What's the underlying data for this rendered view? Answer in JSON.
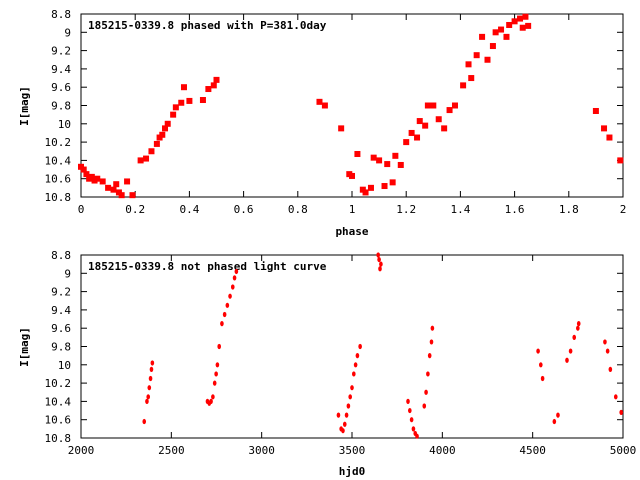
{
  "chart_data": [
    {
      "type": "scatter",
      "title": "185215-0339.8 phased with P=381.0day",
      "xlabel": "phase",
      "ylabel": "I[mag]",
      "xlim": [
        0,
        2
      ],
      "ylim": [
        10.8,
        8.8
      ],
      "y_inverted": true,
      "grid": false,
      "xticks": [
        "0",
        "0.2",
        "0.4",
        "0.6",
        "0.8",
        "1",
        "1.2",
        "1.4",
        "1.6",
        "1.8",
        "2"
      ],
      "xtick_values": [
        0,
        0.2,
        0.4,
        0.6,
        0.8,
        1,
        1.2,
        1.4,
        1.6,
        1.8,
        2
      ],
      "yticks": [
        "8.8",
        "9",
        "9.2",
        "9.4",
        "9.6",
        "9.8",
        "10",
        "10.2",
        "10.4",
        "10.6",
        "10.8"
      ],
      "ytick_values": [
        8.8,
        9.0,
        9.2,
        9.4,
        9.6,
        9.8,
        10.0,
        10.2,
        10.4,
        10.6,
        10.8
      ],
      "marker_color": "#ff0000",
      "series": [
        {
          "points": [
            [
              0.0,
              10.47
            ],
            [
              0.01,
              10.5
            ],
            [
              0.02,
              10.55
            ],
            [
              0.03,
              10.6
            ],
            [
              0.04,
              10.58
            ],
            [
              0.05,
              10.62
            ],
            [
              0.06,
              10.6
            ],
            [
              0.08,
              10.63
            ],
            [
              0.1,
              10.7
            ],
            [
              0.12,
              10.72
            ],
            [
              0.13,
              10.66
            ],
            [
              0.14,
              10.75
            ],
            [
              0.15,
              10.78
            ],
            [
              0.17,
              10.63
            ],
            [
              0.19,
              10.78
            ],
            [
              0.22,
              10.4
            ],
            [
              0.24,
              10.38
            ],
            [
              0.26,
              10.3
            ],
            [
              0.28,
              10.22
            ],
            [
              0.29,
              10.15
            ],
            [
              0.3,
              10.12
            ],
            [
              0.31,
              10.05
            ],
            [
              0.32,
              10.0
            ],
            [
              0.34,
              9.9
            ],
            [
              0.35,
              9.82
            ],
            [
              0.37,
              9.77
            ],
            [
              0.38,
              9.6
            ],
            [
              0.4,
              9.75
            ],
            [
              0.45,
              9.74
            ],
            [
              0.47,
              9.62
            ],
            [
              0.49,
              9.58
            ],
            [
              0.5,
              9.52
            ],
            [
              0.88,
              9.76
            ],
            [
              0.9,
              9.8
            ],
            [
              0.96,
              10.05
            ],
            [
              0.99,
              10.55
            ],
            [
              1.0,
              10.57
            ],
            [
              1.02,
              10.33
            ],
            [
              1.04,
              10.72
            ],
            [
              1.05,
              10.75
            ],
            [
              1.07,
              10.7
            ],
            [
              1.08,
              10.37
            ],
            [
              1.1,
              10.4
            ],
            [
              1.12,
              10.68
            ],
            [
              1.13,
              10.44
            ],
            [
              1.15,
              10.64
            ],
            [
              1.16,
              10.35
            ],
            [
              1.18,
              10.45
            ],
            [
              1.2,
              10.2
            ],
            [
              1.22,
              10.1
            ],
            [
              1.24,
              10.15
            ],
            [
              1.25,
              9.97
            ],
            [
              1.27,
              10.02
            ],
            [
              1.28,
              9.8
            ],
            [
              1.3,
              9.8
            ],
            [
              1.32,
              9.95
            ],
            [
              1.34,
              10.05
            ],
            [
              1.36,
              9.85
            ],
            [
              1.38,
              9.8
            ],
            [
              1.41,
              9.58
            ],
            [
              1.43,
              9.35
            ],
            [
              1.44,
              9.5
            ],
            [
              1.46,
              9.25
            ],
            [
              1.48,
              9.05
            ],
            [
              1.5,
              9.3
            ],
            [
              1.52,
              9.15
            ],
            [
              1.53,
              9.0
            ],
            [
              1.55,
              8.97
            ],
            [
              1.57,
              9.05
            ],
            [
              1.58,
              8.92
            ],
            [
              1.6,
              8.88
            ],
            [
              1.62,
              8.85
            ],
            [
              1.63,
              8.95
            ],
            [
              1.64,
              8.83
            ],
            [
              1.65,
              8.93
            ],
            [
              1.9,
              9.86
            ],
            [
              1.93,
              10.05
            ],
            [
              1.95,
              10.15
            ],
            [
              1.99,
              10.4
            ]
          ]
        }
      ]
    },
    {
      "type": "scatter",
      "title": "185215-0339.8 not phased light curve",
      "xlabel": "hjd0",
      "ylabel": "I[mag]",
      "xlim": [
        2000,
        5000
      ],
      "ylim": [
        10.8,
        8.8
      ],
      "y_inverted": true,
      "grid": false,
      "xticks": [
        "2000",
        "2500",
        "3000",
        "3500",
        "4000",
        "4500",
        "5000"
      ],
      "xtick_values": [
        2000,
        2500,
        3000,
        3500,
        4000,
        4500,
        5000
      ],
      "yticks": [
        "8.8",
        "9",
        "9.2",
        "9.4",
        "9.6",
        "9.8",
        "10",
        "10.2",
        "10.4",
        "10.6",
        "10.8"
      ],
      "ytick_values": [
        8.8,
        9.0,
        9.2,
        9.4,
        9.6,
        9.8,
        10.0,
        10.2,
        10.4,
        10.6,
        10.8
      ],
      "marker_color": "#ff0000",
      "series": [
        {
          "points": [
            [
              2350,
              10.62
            ],
            [
              2365,
              10.4
            ],
            [
              2372,
              10.35
            ],
            [
              2378,
              10.25
            ],
            [
              2385,
              10.15
            ],
            [
              2390,
              10.05
            ],
            [
              2395,
              9.98
            ],
            [
              2700,
              10.4
            ],
            [
              2710,
              10.42
            ],
            [
              2720,
              10.4
            ],
            [
              2730,
              10.35
            ],
            [
              2740,
              10.2
            ],
            [
              2748,
              10.1
            ],
            [
              2755,
              10.0
            ],
            [
              2765,
              9.8
            ],
            [
              2780,
              9.55
            ],
            [
              2795,
              9.45
            ],
            [
              2810,
              9.35
            ],
            [
              2825,
              9.25
            ],
            [
              2840,
              9.15
            ],
            [
              2850,
              9.05
            ],
            [
              2860,
              8.98
            ],
            [
              3425,
              10.55
            ],
            [
              3440,
              10.7
            ],
            [
              3450,
              10.72
            ],
            [
              3460,
              10.65
            ],
            [
              3470,
              10.55
            ],
            [
              3480,
              10.45
            ],
            [
              3490,
              10.35
            ],
            [
              3500,
              10.25
            ],
            [
              3510,
              10.1
            ],
            [
              3520,
              10.0
            ],
            [
              3530,
              9.9
            ],
            [
              3545,
              9.8
            ],
            [
              3645,
              8.8
            ],
            [
              3650,
              8.85
            ],
            [
              3655,
              8.95
            ],
            [
              3660,
              8.9
            ],
            [
              3810,
              10.4
            ],
            [
              3820,
              10.5
            ],
            [
              3830,
              10.6
            ],
            [
              3840,
              10.7
            ],
            [
              3850,
              10.75
            ],
            [
              3860,
              10.78
            ],
            [
              3900,
              10.45
            ],
            [
              3910,
              10.3
            ],
            [
              3920,
              10.1
            ],
            [
              3930,
              9.9
            ],
            [
              3940,
              9.75
            ],
            [
              3945,
              9.6
            ],
            [
              4530,
              9.85
            ],
            [
              4545,
              10.0
            ],
            [
              4555,
              10.15
            ],
            [
              4620,
              10.62
            ],
            [
              4640,
              10.55
            ],
            [
              4690,
              9.95
            ],
            [
              4710,
              9.85
            ],
            [
              4730,
              9.7
            ],
            [
              4750,
              9.6
            ],
            [
              4755,
              9.55
            ],
            [
              4900,
              9.75
            ],
            [
              4915,
              9.85
            ],
            [
              4930,
              10.05
            ],
            [
              4960,
              10.35
            ],
            [
              4990,
              10.52
            ]
          ]
        }
      ]
    }
  ]
}
